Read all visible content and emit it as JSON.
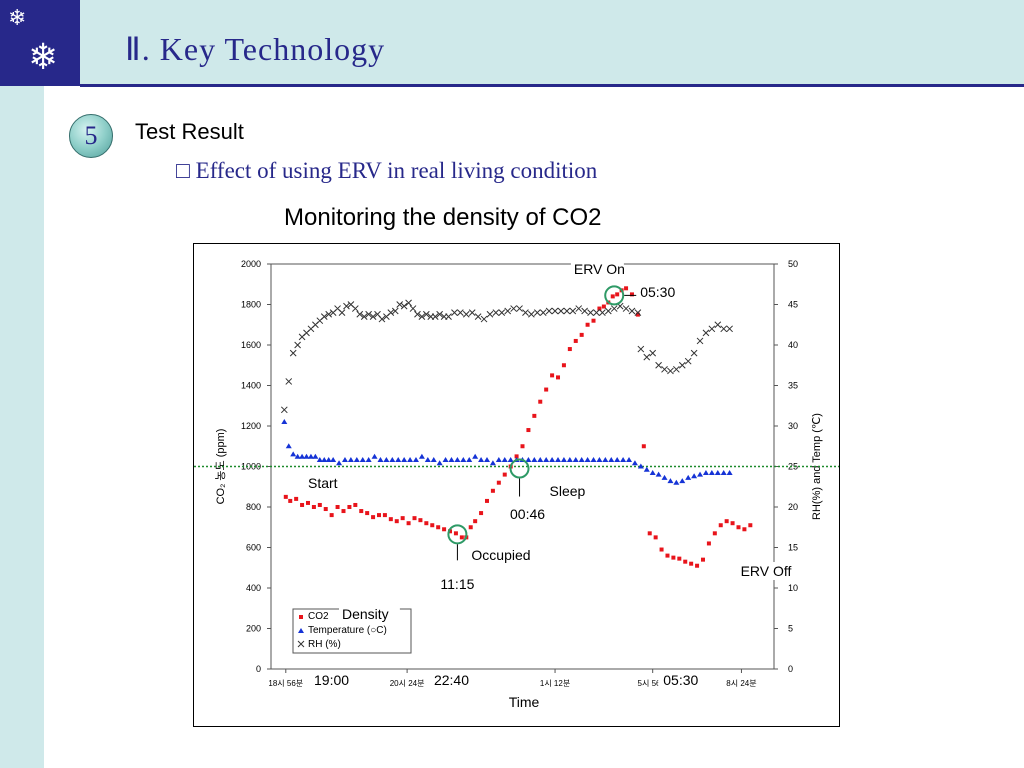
{
  "slide": {
    "title": "Ⅱ. Key Technology",
    "section_number": "5",
    "section_title": "Test Result",
    "subtitle": "□ Effect of using ERV in real living condition",
    "chart_caption": "Monitoring the density of CO2",
    "logo_icons": [
      "snowflake-icon",
      "snowflake-icon"
    ],
    "colors": {
      "navy": "#27288a",
      "band": "#cfe9ea",
      "co2": "#e8141b",
      "temperature": "#1533d6",
      "rh": "#333333",
      "marker": "#2e9a66",
      "reference_line": "#1d8a2c"
    }
  },
  "chart_data": {
    "type": "scatter",
    "x_ticks": [
      "18시 56분",
      "20시 24분",
      "1시 12분",
      "5시 56분",
      "8시 24분"
    ],
    "xlabel": "Time",
    "ylabel_left": "CO₂ 농도 (ppm)",
    "ylabel_right": "RH(%) and Temp (℃)",
    "ylim_left": [
      0,
      2000
    ],
    "ylim_right": [
      0,
      50
    ],
    "y_ticks_left": [
      "0",
      "200",
      "400",
      "600",
      "800",
      "1000",
      "1200",
      "1400",
      "1600",
      "1800",
      "2000"
    ],
    "y_ticks_right": [
      "0",
      "5",
      "10",
      "15",
      "20",
      "25",
      "30",
      "35",
      "40",
      "45",
      "50"
    ],
    "reference_line_ppm": 1000,
    "legend": {
      "items": [
        "CO2",
        "Temperature (○C)",
        "RH (%)"
      ],
      "placement": "bottom-left"
    },
    "series": [
      {
        "name": "CO2",
        "axis": "left",
        "marker": "square",
        "x": [
          0.5,
          0.65,
          0.85,
          1.05,
          1.25,
          1.45,
          1.65,
          1.85,
          2.05,
          2.25,
          2.45,
          2.65,
          2.85,
          3.05,
          3.25,
          3.45,
          3.65,
          3.85,
          4.05,
          4.25,
          4.45,
          4.65,
          4.85,
          5.05,
          5.25,
          5.45,
          5.65,
          5.85,
          6.05,
          6.25,
          6.45,
          6.6,
          6.75,
          6.9,
          7.1,
          7.3,
          7.5,
          7.7,
          7.9,
          8.1,
          8.3,
          8.5,
          8.7,
          8.9,
          9.1,
          9.3,
          9.5,
          9.7,
          9.9,
          10.1,
          10.3,
          10.5,
          10.7,
          10.9,
          11.1,
          11.25,
          11.4,
          11.55,
          11.7,
          11.85,
          12.0,
          12.2,
          12.4,
          12.6,
          12.8,
          13.0,
          13.2,
          13.4,
          13.6,
          13.8,
          14.0,
          14.2,
          14.4,
          14.6,
          14.8,
          15.0,
          15.2,
          15.4,
          15.6,
          15.8,
          16.0,
          16.2
        ],
        "y": [
          850,
          830,
          840,
          810,
          820,
          800,
          810,
          790,
          760,
          800,
          780,
          800,
          810,
          780,
          770,
          750,
          760,
          760,
          740,
          730,
          745,
          720,
          745,
          735,
          720,
          710,
          700,
          690,
          680,
          670,
          650,
          650,
          700,
          730,
          770,
          830,
          880,
          920,
          960,
          1000,
          1050,
          1100,
          1180,
          1250,
          1320,
          1380,
          1450,
          1440,
          1500,
          1580,
          1620,
          1650,
          1700,
          1720,
          1780,
          1790,
          1810,
          1840,
          1850,
          1870,
          1880,
          1850,
          1750,
          1100,
          670,
          650,
          590,
          560,
          550,
          545,
          530,
          520,
          510,
          540,
          620,
          670,
          710,
          730,
          720,
          700,
          690,
          710
        ]
      },
      {
        "name": "Temperature (○C)",
        "axis": "right",
        "marker": "triangle",
        "x": [
          0.45,
          0.6,
          0.75,
          0.9,
          1.05,
          1.2,
          1.35,
          1.5,
          1.65,
          1.8,
          1.95,
          2.1,
          2.3,
          2.5,
          2.7,
          2.9,
          3.1,
          3.3,
          3.5,
          3.7,
          3.9,
          4.1,
          4.3,
          4.5,
          4.7,
          4.9,
          5.1,
          5.3,
          5.5,
          5.7,
          5.9,
          6.1,
          6.3,
          6.5,
          6.7,
          6.9,
          7.1,
          7.3,
          7.5,
          7.7,
          7.9,
          8.1,
          8.3,
          8.5,
          8.7,
          8.9,
          9.1,
          9.3,
          9.5,
          9.7,
          9.9,
          10.1,
          10.3,
          10.5,
          10.7,
          10.9,
          11.1,
          11.3,
          11.5,
          11.7,
          11.9,
          12.1,
          12.3,
          12.5,
          12.7,
          12.9,
          13.1,
          13.3,
          13.5,
          13.7,
          13.9,
          14.1,
          14.3,
          14.5,
          14.7,
          14.9,
          15.1,
          15.3,
          15.5
        ],
        "y": [
          30.5,
          27.5,
          26.5,
          26.2,
          26.2,
          26.2,
          26.2,
          26.2,
          25.8,
          25.8,
          25.8,
          25.8,
          25.4,
          25.8,
          25.8,
          25.8,
          25.8,
          25.8,
          26.2,
          25.8,
          25.8,
          25.8,
          25.8,
          25.8,
          25.8,
          25.8,
          26.2,
          25.8,
          25.8,
          25.4,
          25.8,
          25.8,
          25.8,
          25.8,
          25.8,
          26.2,
          25.8,
          25.8,
          25.4,
          25.8,
          25.8,
          25.8,
          25.8,
          25.8,
          25.8,
          25.8,
          25.8,
          25.8,
          25.8,
          25.8,
          25.8,
          25.8,
          25.8,
          25.8,
          25.8,
          25.8,
          25.8,
          25.8,
          25.8,
          25.8,
          25.8,
          25.8,
          25.4,
          25.0,
          24.6,
          24.2,
          24.0,
          23.6,
          23.2,
          23.0,
          23.2,
          23.6,
          23.8,
          24.0,
          24.2,
          24.2,
          24.2,
          24.2,
          24.2
        ]
      },
      {
        "name": "RH (%)",
        "axis": "right",
        "marker": "x",
        "x": [
          0.45,
          0.6,
          0.75,
          0.9,
          1.05,
          1.2,
          1.35,
          1.5,
          1.65,
          1.8,
          1.95,
          2.1,
          2.25,
          2.4,
          2.55,
          2.7,
          2.85,
          3.0,
          3.15,
          3.3,
          3.45,
          3.6,
          3.75,
          3.9,
          4.05,
          4.2,
          4.35,
          4.5,
          4.65,
          4.8,
          4.95,
          5.1,
          5.25,
          5.4,
          5.55,
          5.7,
          5.85,
          6.0,
          6.2,
          6.4,
          6.6,
          6.8,
          7.0,
          7.2,
          7.4,
          7.6,
          7.8,
          8.0,
          8.2,
          8.4,
          8.6,
          8.8,
          9.0,
          9.2,
          9.4,
          9.6,
          9.8,
          10.0,
          10.2,
          10.4,
          10.6,
          10.8,
          11.0,
          11.2,
          11.4,
          11.6,
          11.8,
          12.0,
          12.2,
          12.4,
          12.5,
          12.7,
          12.9,
          13.1,
          13.3,
          13.5,
          13.7,
          13.9,
          14.1,
          14.3,
          14.5,
          14.7,
          14.9,
          15.1,
          15.3,
          15.5
        ],
        "y": [
          32.0,
          35.5,
          39.0,
          40.0,
          41.0,
          41.5,
          42.0,
          42.5,
          43.0,
          43.5,
          43.8,
          44.0,
          44.5,
          44.0,
          44.8,
          45.0,
          44.5,
          43.8,
          43.5,
          43.8,
          43.5,
          43.8,
          43.2,
          43.5,
          44.0,
          44.2,
          45.0,
          44.8,
          45.2,
          44.5,
          43.8,
          43.5,
          43.8,
          43.5,
          43.5,
          43.8,
          43.5,
          43.5,
          44.0,
          44.0,
          43.8,
          44.0,
          43.5,
          43.2,
          43.8,
          44.0,
          44.0,
          44.2,
          44.5,
          44.5,
          44.0,
          43.8,
          44.0,
          44.0,
          44.2,
          44.2,
          44.2,
          44.2,
          44.2,
          44.5,
          44.2,
          44.0,
          44.0,
          44.0,
          44.2,
          44.5,
          44.8,
          44.5,
          44.2,
          44.0,
          39.5,
          38.5,
          39.0,
          37.5,
          37.0,
          36.8,
          37.0,
          37.5,
          38.0,
          39.0,
          40.5,
          41.5,
          42.0,
          42.5,
          42.0,
          42.0
        ]
      }
    ],
    "annotations": [
      {
        "text": "ERV On",
        "tail": "05:30"
      },
      {
        "text": "Start",
        "tail": "19:00"
      },
      {
        "text": "Occupied",
        "tail": "11:15"
      },
      {
        "text": "Sleep",
        "tail": "00:46"
      },
      {
        "text": "ERV Off",
        "tail": "05:30"
      },
      {
        "text": "Density",
        "tail": "22:40"
      }
    ]
  }
}
